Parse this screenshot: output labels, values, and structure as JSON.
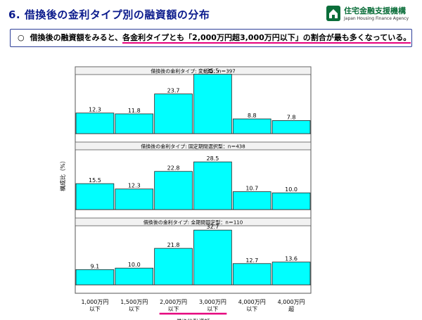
{
  "header": {
    "title": "6. 借換後の金利タイプ別の融資額の分布",
    "logo_name": "住宅金融支援機構",
    "logo_sub": "Japan Housing Finance Agency"
  },
  "summary": {
    "bullet": "○",
    "text_before": "借換後の融資額をみると、",
    "text_highlight": "各金利タイプとも「2,000万円超3,000万円以下」の割合が最も多くなっている。"
  },
  "chart_data": {
    "type": "bar",
    "categories": [
      "1,000万円\n以下",
      "1,500万円\n以下",
      "2,000万円\n以下",
      "3,000万円\n以下",
      "4,000万円\n以下",
      "4,000万円\n超"
    ],
    "xlabel": "借換後融資額",
    "ylabel": "構成比（%）",
    "highlight_categories": [
      2,
      3
    ],
    "bar_color": "#00ffff",
    "highlight_color": "#e6007e",
    "panels": [
      {
        "title": "借換後の金利タイプ: 変動型：n＝397",
        "values": [
          12.3,
          11.8,
          23.7,
          35.5,
          8.8,
          7.8
        ]
      },
      {
        "title": "借換後の金利タイプ: 固定期間選択型：n＝438",
        "values": [
          15.5,
          12.3,
          22.8,
          28.5,
          10.7,
          10.0
        ]
      },
      {
        "title": "借換後の金利タイプ: 全期間固定型：n＝110",
        "values": [
          9.1,
          10.0,
          21.8,
          32.7,
          12.7,
          13.6
        ]
      }
    ],
    "ylim": [
      0,
      40
    ]
  }
}
